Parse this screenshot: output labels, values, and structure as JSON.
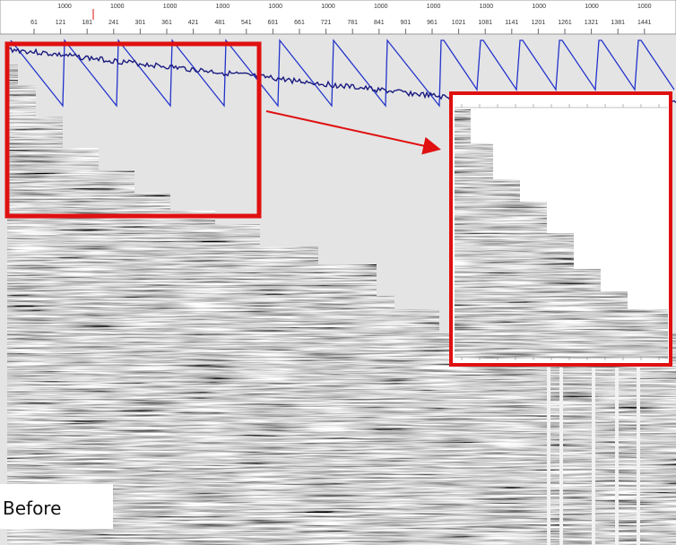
{
  "top_axis": {
    "header_labels": [
      "1000",
      "1000",
      "1000",
      "1000",
      "1000",
      "1000",
      "1000",
      "1000",
      "1000",
      "1000",
      "1000",
      "1000"
    ],
    "trace_labels": [
      61,
      121,
      181,
      241,
      301,
      361,
      421,
      481,
      541,
      601,
      661,
      721,
      781,
      841,
      901,
      961,
      1021,
      1081,
      1141,
      1201,
      1261,
      1321,
      1381,
      1441
    ]
  },
  "caption": "Before"
}
